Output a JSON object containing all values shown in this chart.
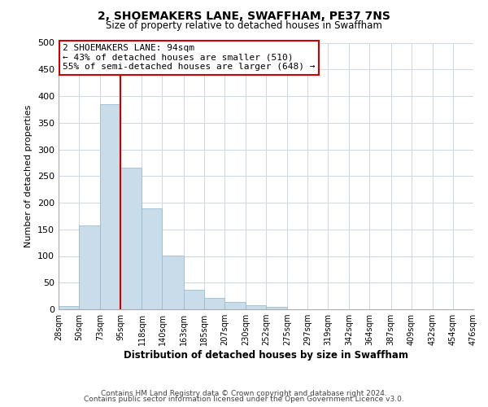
{
  "title": "2, SHOEMAKERS LANE, SWAFFHAM, PE37 7NS",
  "subtitle": "Size of property relative to detached houses in Swaffham",
  "xlabel": "Distribution of detached houses by size in Swaffham",
  "ylabel": "Number of detached properties",
  "bar_color": "#c8dcea",
  "bar_edgecolor": "#9bbcd0",
  "bins": [
    28,
    50,
    73,
    95,
    118,
    140,
    163,
    185,
    207,
    230,
    252,
    275,
    297,
    319,
    342,
    364,
    387,
    409,
    432,
    454,
    476
  ],
  "counts": [
    6,
    157,
    384,
    265,
    190,
    101,
    36,
    22,
    14,
    8,
    4,
    0,
    0,
    0,
    0,
    0,
    0,
    0,
    0,
    0
  ],
  "tick_labels": [
    "28sqm",
    "50sqm",
    "73sqm",
    "95sqm",
    "118sqm",
    "140sqm",
    "163sqm",
    "185sqm",
    "207sqm",
    "230sqm",
    "252sqm",
    "275sqm",
    "297sqm",
    "319sqm",
    "342sqm",
    "364sqm",
    "387sqm",
    "409sqm",
    "432sqm",
    "454sqm",
    "476sqm"
  ],
  "vline_x": 95,
  "vline_color": "#cc0000",
  "ylim": [
    0,
    500
  ],
  "yticks": [
    0,
    50,
    100,
    150,
    200,
    250,
    300,
    350,
    400,
    450,
    500
  ],
  "annotation_title": "2 SHOEMAKERS LANE: 94sqm",
  "annotation_line1": "← 43% of detached houses are smaller (510)",
  "annotation_line2": "55% of semi-detached houses are larger (648) →",
  "annotation_box_color": "#ffffff",
  "annotation_box_edgecolor": "#cc0000",
  "footer1": "Contains HM Land Registry data © Crown copyright and database right 2024.",
  "footer2": "Contains public sector information licensed under the Open Government Licence v3.0.",
  "background_color": "#ffffff",
  "grid_color": "#ccd8e4"
}
